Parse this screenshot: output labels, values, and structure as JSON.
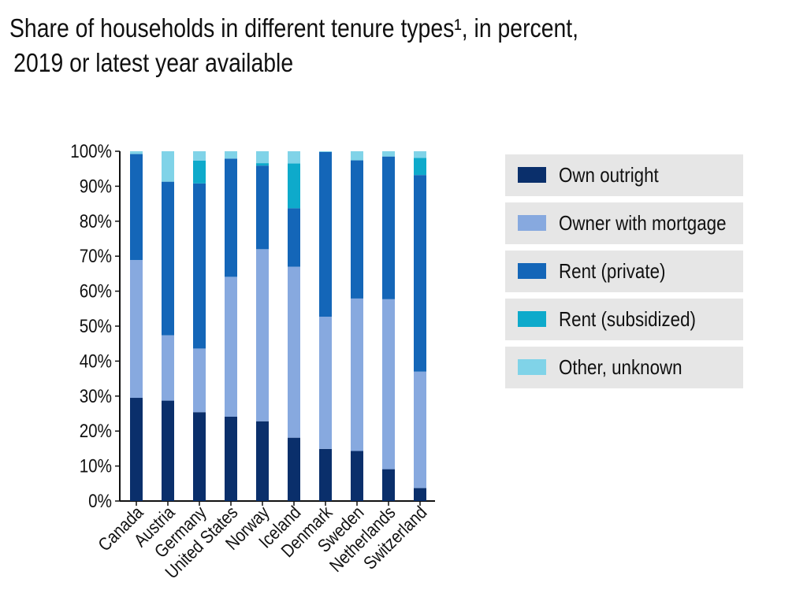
{
  "title": {
    "line1": "Share of households in different tenure types¹, in percent,",
    "line2": "2019 or latest year available"
  },
  "chart_data": {
    "type": "bar",
    "stacked": true,
    "categories": [
      "Canada",
      "Austria",
      "Germany",
      "United States",
      "Norway",
      "Iceland",
      "Denmark",
      "Sweden",
      "Netherlands",
      "Switzerland"
    ],
    "series": [
      {
        "name": "Own outright",
        "color": "#0a2f6b",
        "values": [
          29.5,
          28.7,
          25.4,
          24.1,
          22.8,
          18.1,
          14.9,
          14.3,
          9.1,
          3.7
        ]
      },
      {
        "name": "Owner with mortgage",
        "color": "#87a9df",
        "values": [
          39.4,
          18.7,
          18.2,
          40.0,
          49.2,
          48.9,
          37.8,
          43.6,
          48.6,
          33.3
        ]
      },
      {
        "name": "Rent (private)",
        "color": "#1466b8",
        "values": [
          30.3,
          43.9,
          47.2,
          33.8,
          23.9,
          16.7,
          47.1,
          39.5,
          40.8,
          56.2
        ]
      },
      {
        "name": "Rent (subsidized)",
        "color": "#0eaacb",
        "values": [
          0.0,
          0.0,
          6.5,
          0.0,
          0.7,
          12.8,
          0.0,
          0.0,
          0.0,
          4.9
        ]
      },
      {
        "name": "Other, unknown",
        "color": "#80d3e8",
        "values": [
          0.8,
          8.7,
          2.7,
          2.1,
          3.4,
          3.5,
          0.2,
          2.6,
          1.5,
          1.9
        ]
      }
    ],
    "yticks": [
      "0%",
      "10%",
      "20%",
      "30%",
      "40%",
      "50%",
      "60%",
      "70%",
      "80%",
      "90%",
      "100%"
    ],
    "ylim": [
      0,
      100
    ],
    "xlabel": "",
    "ylabel": "",
    "grid": false,
    "legend_position": "right"
  }
}
